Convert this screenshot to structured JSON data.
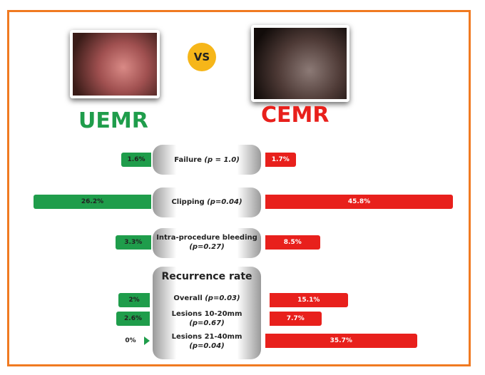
{
  "chart_data": {
    "type": "butterfly",
    "vs_label": "VS",
    "section_title": "Recurrence rate",
    "categories": [
      "Failure",
      "Clipping",
      "Intra-procedure bleeding",
      "Overall",
      "Lesions 10-20mm",
      "Lesions 21-40mm"
    ],
    "p_values": [
      "(p = 1.0)",
      "(p=0.04)",
      "(p=0.27)",
      "(p=0.03)",
      "(p=0.67)",
      "(p=0.04)"
    ],
    "series": [
      {
        "name": "UEMR",
        "color": "#1f9d4b",
        "values": [
          1.6,
          26.2,
          3.3,
          2,
          2.6,
          0
        ],
        "value_labels": [
          "1.6%",
          "26.2%",
          "3.3%",
          "2%",
          "2.6%",
          "0%"
        ]
      },
      {
        "name": "CEMR",
        "color": "#e8201c",
        "values": [
          1.7,
          45.8,
          8.5,
          15.1,
          7.7,
          35.7
        ],
        "value_labels": [
          "1.7%",
          "45.8%",
          "8.5%",
          "15.1%",
          "7.7%",
          "35.7%"
        ]
      }
    ]
  }
}
